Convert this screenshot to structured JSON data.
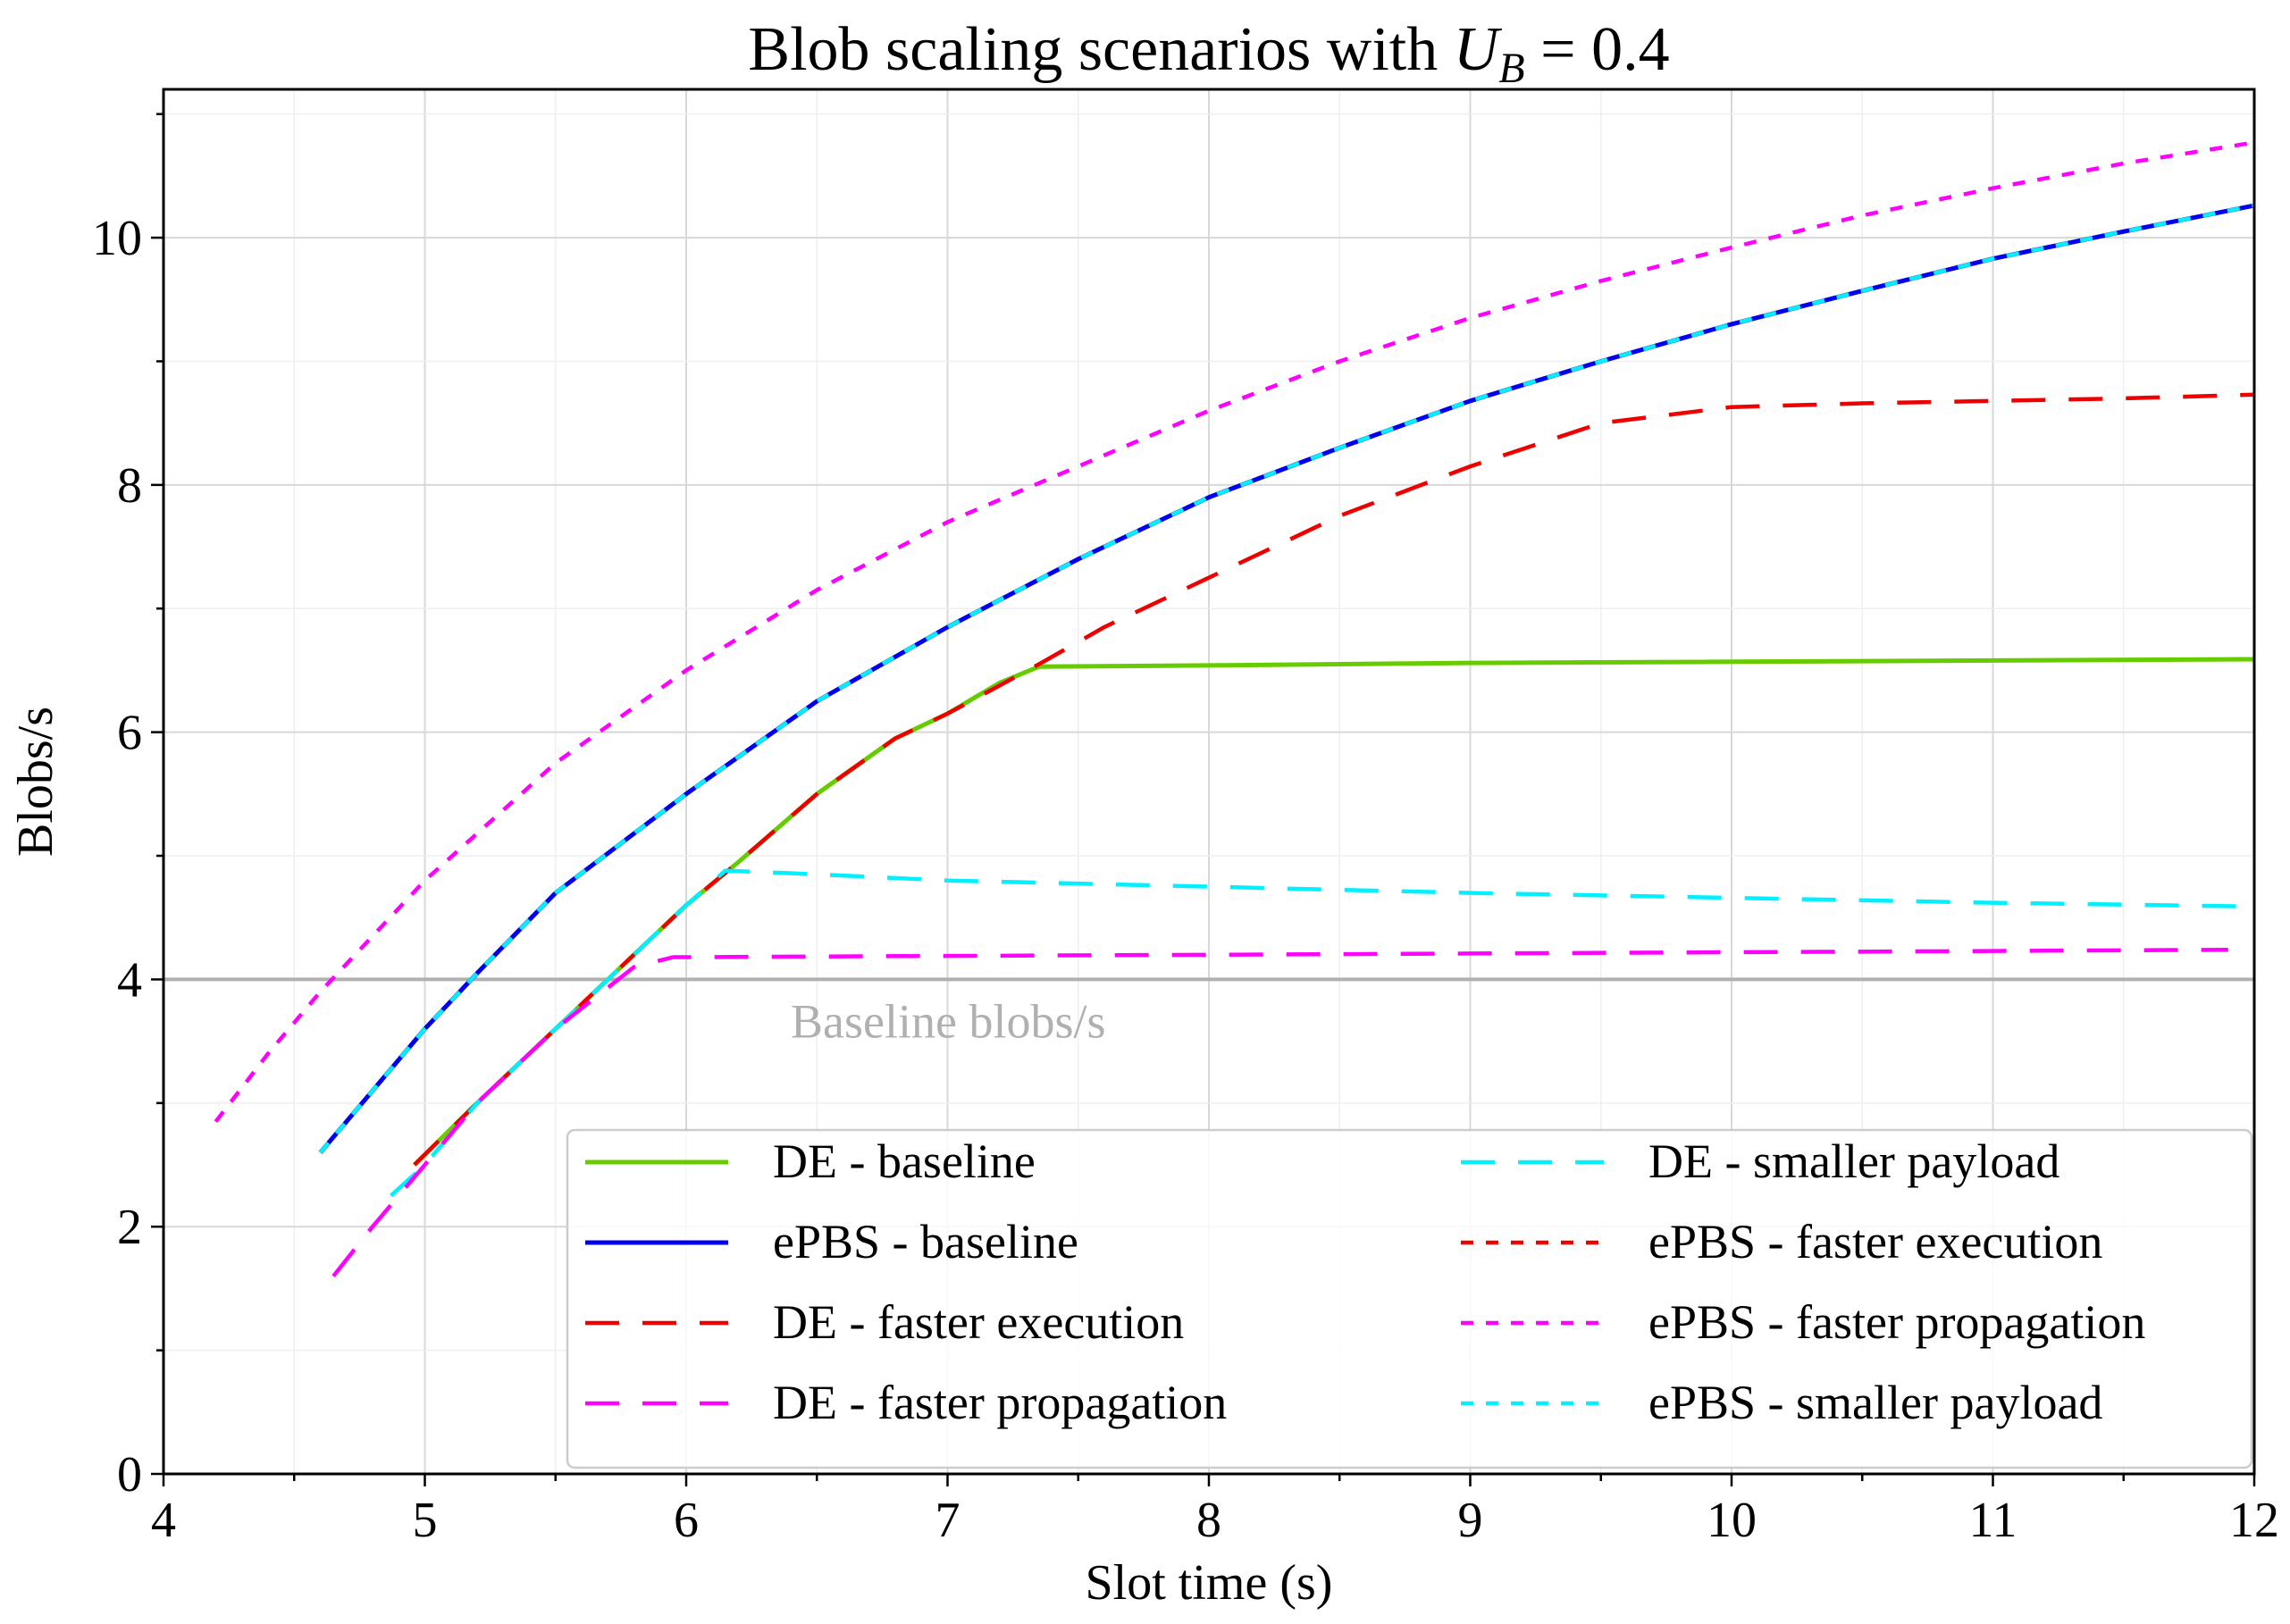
{
  "chart_data": {
    "type": "line",
    "title": "Blob scaling scenarios with ",
    "title_math": {
      "base": "U",
      "sub": "B",
      "rest": " = 0.4"
    },
    "xlabel": "Slot time (s)",
    "ylabel": "Blobs/s",
    "xlim": [
      4,
      12
    ],
    "ylim": [
      0,
      11.2
    ],
    "xticks": [
      4,
      5,
      6,
      7,
      8,
      9,
      10,
      11,
      12
    ],
    "yticks": [
      0,
      2,
      4,
      6,
      8,
      10
    ],
    "grid": true,
    "legend_position": "lower-right",
    "reference_line": {
      "y": 4,
      "label": "Baseline blobs/s",
      "color": "#b0b0b0"
    },
    "series": [
      {
        "name": "DE    - baseline",
        "color": "#66cc00",
        "style": "solid",
        "x": [
          4.96,
          5.2,
          5.5,
          5.8,
          6.0,
          6.2,
          6.5,
          6.8,
          7.0,
          7.2,
          7.35,
          8,
          9,
          10,
          11,
          12
        ],
        "y": [
          2.5,
          3.0,
          3.6,
          4.2,
          4.6,
          4.95,
          5.5,
          5.95,
          6.15,
          6.4,
          6.53,
          6.54,
          6.56,
          6.57,
          6.58,
          6.59
        ]
      },
      {
        "name": "ePBS - baseline",
        "color": "#0000ee",
        "style": "solid",
        "x": [
          4.6,
          4.8,
          5.0,
          5.2,
          5.5,
          6.0,
          6.5,
          7.0,
          7.5,
          8.0,
          8.5,
          9.0,
          9.5,
          10.0,
          10.5,
          11.0,
          11.5,
          12.0
        ],
        "y": [
          2.6,
          3.1,
          3.6,
          4.05,
          4.7,
          5.5,
          6.25,
          6.85,
          7.4,
          7.9,
          8.3,
          8.68,
          9.0,
          9.3,
          9.57,
          9.83,
          10.05,
          10.26
        ]
      },
      {
        "name": "DE    - faster execution",
        "color": "#ee0000",
        "style": "dashed",
        "x": [
          4.96,
          5.2,
          5.5,
          5.8,
          6.0,
          6.2,
          6.5,
          6.8,
          7.0,
          7.35,
          7.6,
          8.0,
          8.5,
          9.0,
          9.5,
          10.0,
          10.5,
          11.0,
          11.5,
          12.0
        ],
        "y": [
          2.5,
          3.0,
          3.6,
          4.2,
          4.6,
          4.95,
          5.5,
          5.95,
          6.15,
          6.55,
          6.85,
          7.25,
          7.75,
          8.15,
          8.5,
          8.63,
          8.66,
          8.68,
          8.7,
          8.73
        ]
      },
      {
        "name": "DE    - faster propagation",
        "color": "#ff00ff",
        "style": "dashed",
        "x": [
          4.65,
          4.8,
          5.0,
          5.2,
          5.5,
          5.8,
          5.95,
          6.0,
          7.0,
          8.0,
          9.0,
          10.0,
          11.0,
          11.9
        ],
        "y": [
          1.6,
          2.0,
          2.5,
          3.0,
          3.6,
          4.1,
          4.18,
          4.18,
          4.19,
          4.2,
          4.21,
          4.22,
          4.23,
          4.24
        ]
      },
      {
        "name": "DE    - smaller payload",
        "color": "#00f0ff",
        "style": "dashed",
        "x": [
          4.87,
          5.0,
          5.2,
          5.5,
          5.8,
          6.0,
          6.15,
          6.5,
          7.0,
          8.0,
          9.0,
          10.0,
          11.0,
          12.0
        ],
        "y": [
          2.25,
          2.5,
          3.0,
          3.6,
          4.2,
          4.6,
          4.88,
          4.85,
          4.8,
          4.75,
          4.7,
          4.66,
          4.62,
          4.59
        ]
      },
      {
        "name": "ePBS - faster execution",
        "color": "#ee0000",
        "style": "dotted",
        "x": [
          4.6,
          4.8,
          5.0,
          5.2,
          5.5,
          6.0,
          6.5,
          7.0,
          7.5,
          8.0,
          8.5,
          9.0,
          9.5,
          10.0,
          10.5,
          11.0,
          11.5,
          12.0
        ],
        "y": [
          2.6,
          3.1,
          3.6,
          4.05,
          4.7,
          5.5,
          6.25,
          6.85,
          7.4,
          7.9,
          8.3,
          8.68,
          9.0,
          9.3,
          9.57,
          9.83,
          10.05,
          10.26
        ]
      },
      {
        "name": "ePBS - faster propagation",
        "color": "#ff00ff",
        "style": "dotted",
        "x": [
          4.2,
          4.4,
          4.6,
          4.8,
          5.0,
          5.5,
          6.0,
          6.5,
          7.0,
          7.5,
          8.0,
          8.5,
          9.0,
          9.5,
          10.0,
          10.5,
          11.0,
          11.5,
          12.0
        ],
        "y": [
          2.85,
          3.4,
          3.9,
          4.35,
          4.8,
          5.75,
          6.5,
          7.15,
          7.7,
          8.15,
          8.6,
          9.0,
          9.35,
          9.65,
          9.92,
          10.18,
          10.4,
          10.6,
          10.77
        ]
      },
      {
        "name": "ePBS - smaller payload",
        "color": "#00f0ff",
        "style": "dotted",
        "x": [
          4.6,
          4.8,
          5.0,
          5.2,
          5.5,
          6.0,
          6.5,
          7.0,
          7.5,
          8.0,
          8.5,
          9.0,
          9.5,
          10.0,
          10.5,
          11.0,
          11.5,
          12.0
        ],
        "y": [
          2.6,
          3.1,
          3.6,
          4.05,
          4.7,
          5.5,
          6.25,
          6.85,
          7.4,
          7.9,
          8.3,
          8.68,
          9.0,
          9.3,
          9.57,
          9.83,
          10.05,
          10.26
        ]
      }
    ],
    "legend_columns": [
      [
        "DE    - baseline",
        "ePBS - baseline",
        "DE    - faster execution",
        "DE    - faster propagation"
      ],
      [
        "DE    - smaller payload",
        "ePBS - faster execution",
        "ePBS - faster propagation",
        "ePBS - smaller payload"
      ]
    ]
  }
}
